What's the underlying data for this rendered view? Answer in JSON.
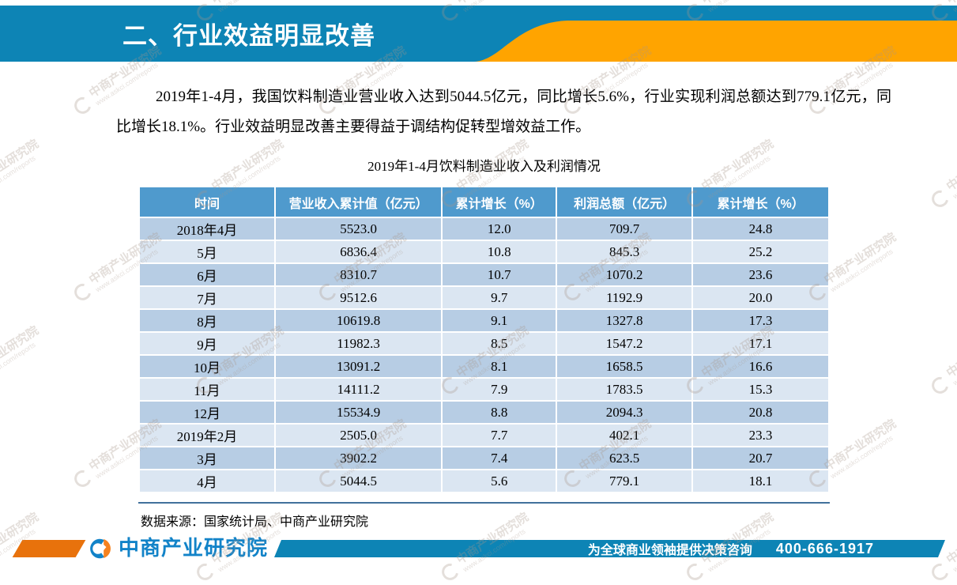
{
  "header": {
    "title": "二、行业效益明显改善"
  },
  "paragraph": {
    "text": "2019年1-4月，我国饮料制造业营业收入达到5044.5亿元，同比增长5.6%，行业实现利润总额达到779.1亿元，同比增长18.1%。行业效益明显改善主要得益于调结构促转型增效益工作。"
  },
  "table": {
    "title": "2019年1-4月饮料制造业收入及利润情况",
    "columns": [
      "时间",
      "营业收入累计值（亿元）",
      "累计增长（%）",
      "利润总额（亿元）",
      "累计增长（%）"
    ],
    "rows": [
      [
        "2018年4月",
        "5523.0",
        "12.0",
        "709.7",
        "24.8"
      ],
      [
        "5月",
        "6836.4",
        "10.8",
        "845.3",
        "25.2"
      ],
      [
        "6月",
        "8310.7",
        "10.7",
        "1070.2",
        "23.6"
      ],
      [
        "7月",
        "9512.6",
        "9.7",
        "1192.9",
        "20.0"
      ],
      [
        "8月",
        "10619.8",
        "9.1",
        "1327.8",
        "17.3"
      ],
      [
        "9月",
        "11982.3",
        "8.5",
        "1547.2",
        "17.1"
      ],
      [
        "10月",
        "13091.2",
        "8.1",
        "1658.5",
        "16.6"
      ],
      [
        "11月",
        "14111.2",
        "7.9",
        "1783.5",
        "15.3"
      ],
      [
        "12月",
        "15534.9",
        "8.8",
        "2094.3",
        "20.8"
      ],
      [
        "2019年2月",
        "2505.0",
        "7.7",
        "402.1",
        "23.3"
      ],
      [
        "3月",
        "3902.2",
        "7.4",
        "623.5",
        "20.7"
      ],
      [
        "4月",
        "5044.5",
        "5.6",
        "779.1",
        "18.1"
      ]
    ]
  },
  "source_note": "数据来源：国家统计局、中商产业研究院",
  "footer": {
    "brand": "中商产业研究院",
    "slogan": "为全球商业领袖提供决策咨询",
    "phone": "400-666-1917"
  },
  "watermark": {
    "line1": "中商产业研究院",
    "line2": "www.askci.com/reports"
  },
  "colors": {
    "header_blue": "#0d84b5",
    "accent_orange": "#ffa400",
    "table_header_blue": "#4f9acd",
    "row_dark": "#b7cde4",
    "row_light": "#dbe6f2",
    "rule_blue": "#41719c",
    "brand_blue": "#1283c8"
  }
}
